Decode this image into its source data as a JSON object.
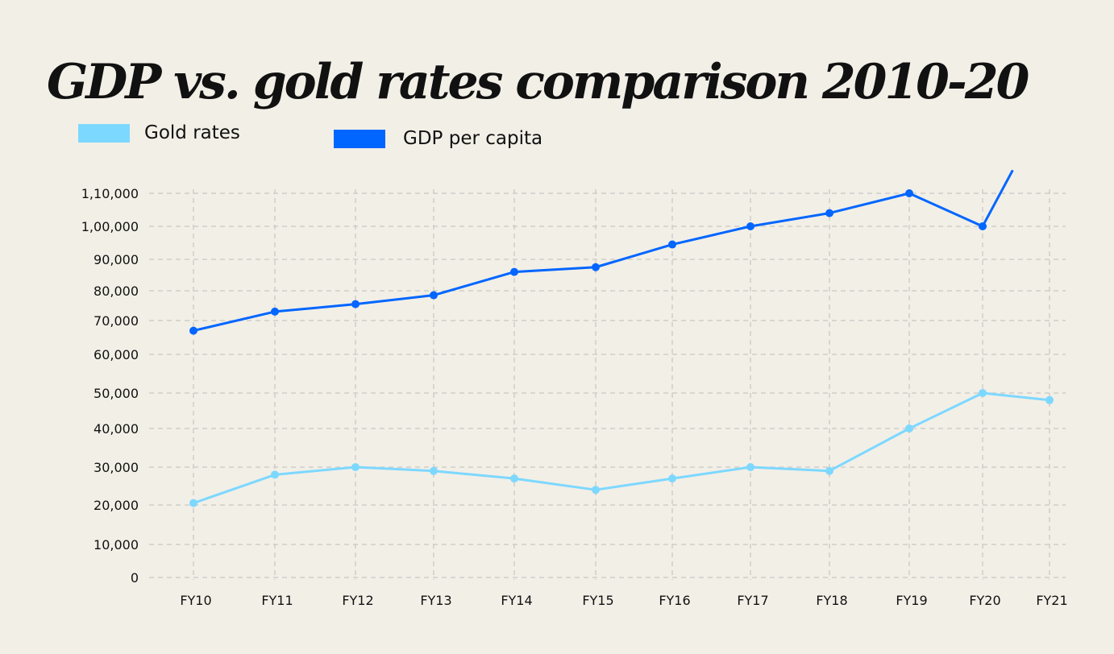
{
  "chart_data": {
    "type": "line",
    "title": "GDP vs. gold rates comparison 2010-20",
    "xlabel": "",
    "ylabel": "",
    "categories": [
      "FY10",
      "FY11",
      "FY12",
      "FY13",
      "FY14",
      "FY15",
      "FY16",
      "FY17",
      "FY18",
      "FY19",
      "FY20",
      "FY21"
    ],
    "y_ticks": [
      0,
      10000,
      20000,
      30000,
      40000,
      50000,
      60000,
      70000,
      80000,
      90000,
      100000,
      110000
    ],
    "y_tick_labels": [
      "0",
      "10,000",
      "20,000",
      "30,000",
      "40,000",
      "50,000",
      "60,000",
      "70,000",
      "80,000",
      "90,000",
      "1,00,000",
      "1,10,000"
    ],
    "ylim": [
      0,
      110000
    ],
    "grid": true,
    "legend_placement": "top-left",
    "series": [
      {
        "name": "Gold rates",
        "color": "#7dd8ff",
        "values": [
          20500,
          28000,
          30000,
          29000,
          27000,
          24000,
          27000,
          30000,
          29000,
          40000,
          50000,
          48000
        ]
      },
      {
        "name": "GDP per capita",
        "color": "#0066ff",
        "values": [
          67000,
          73000,
          75500,
          78500,
          86000,
          87500,
          94500,
          100000,
          104000,
          110000,
          100000,
          null
        ],
        "trailing_segment_end": {
          "x_index": 10.45,
          "value": 117000
        }
      }
    ]
  }
}
